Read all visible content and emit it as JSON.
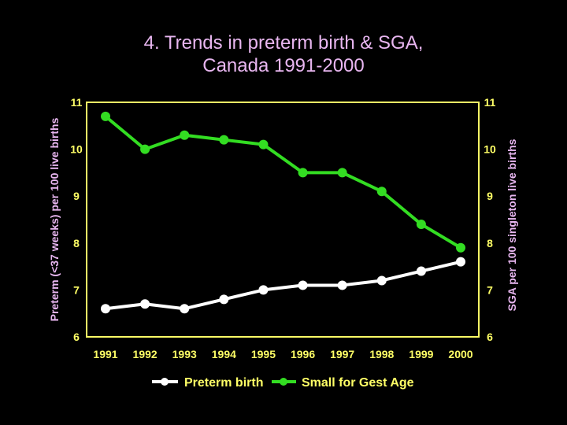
{
  "title_line1": "4. Trends in preterm birth & SGA,",
  "title_line2": "Canada 1991-2000",
  "colors": {
    "background": "#000000",
    "title": "#e8b6f0",
    "axis": "#ffff66",
    "tick_label": "#ffff66",
    "preterm": "#ffffff",
    "sga": "#33dd22",
    "legend_text": "#ffff66"
  },
  "chart_data": {
    "type": "line",
    "x": [
      "1991",
      "1992",
      "1993",
      "1994",
      "1995",
      "1996",
      "1997",
      "1998",
      "1999",
      "2000"
    ],
    "ylabel_left": "Preterm (<37 weeks) per 100 live births",
    "ylabel_right": "SGA per 100 singleton live births",
    "ylim_left": [
      6,
      11
    ],
    "ylim_right": [
      6,
      11
    ],
    "yticks_left": [
      "6",
      "7",
      "8",
      "9",
      "10",
      "11"
    ],
    "yticks_right": [
      "6",
      "7",
      "8",
      "9",
      "10",
      "11"
    ],
    "grid": false,
    "legend_placement": "bottom",
    "series": [
      {
        "name": "Preterm birth",
        "axis": "left",
        "values": [
          6.6,
          6.7,
          6.6,
          6.8,
          7.0,
          7.1,
          7.1,
          7.2,
          7.4,
          7.6
        ]
      },
      {
        "name": "Small for Gest Age",
        "axis": "right",
        "values": [
          10.7,
          10.0,
          10.3,
          10.2,
          10.1,
          9.5,
          9.5,
          9.1,
          8.4,
          7.9
        ]
      }
    ]
  }
}
